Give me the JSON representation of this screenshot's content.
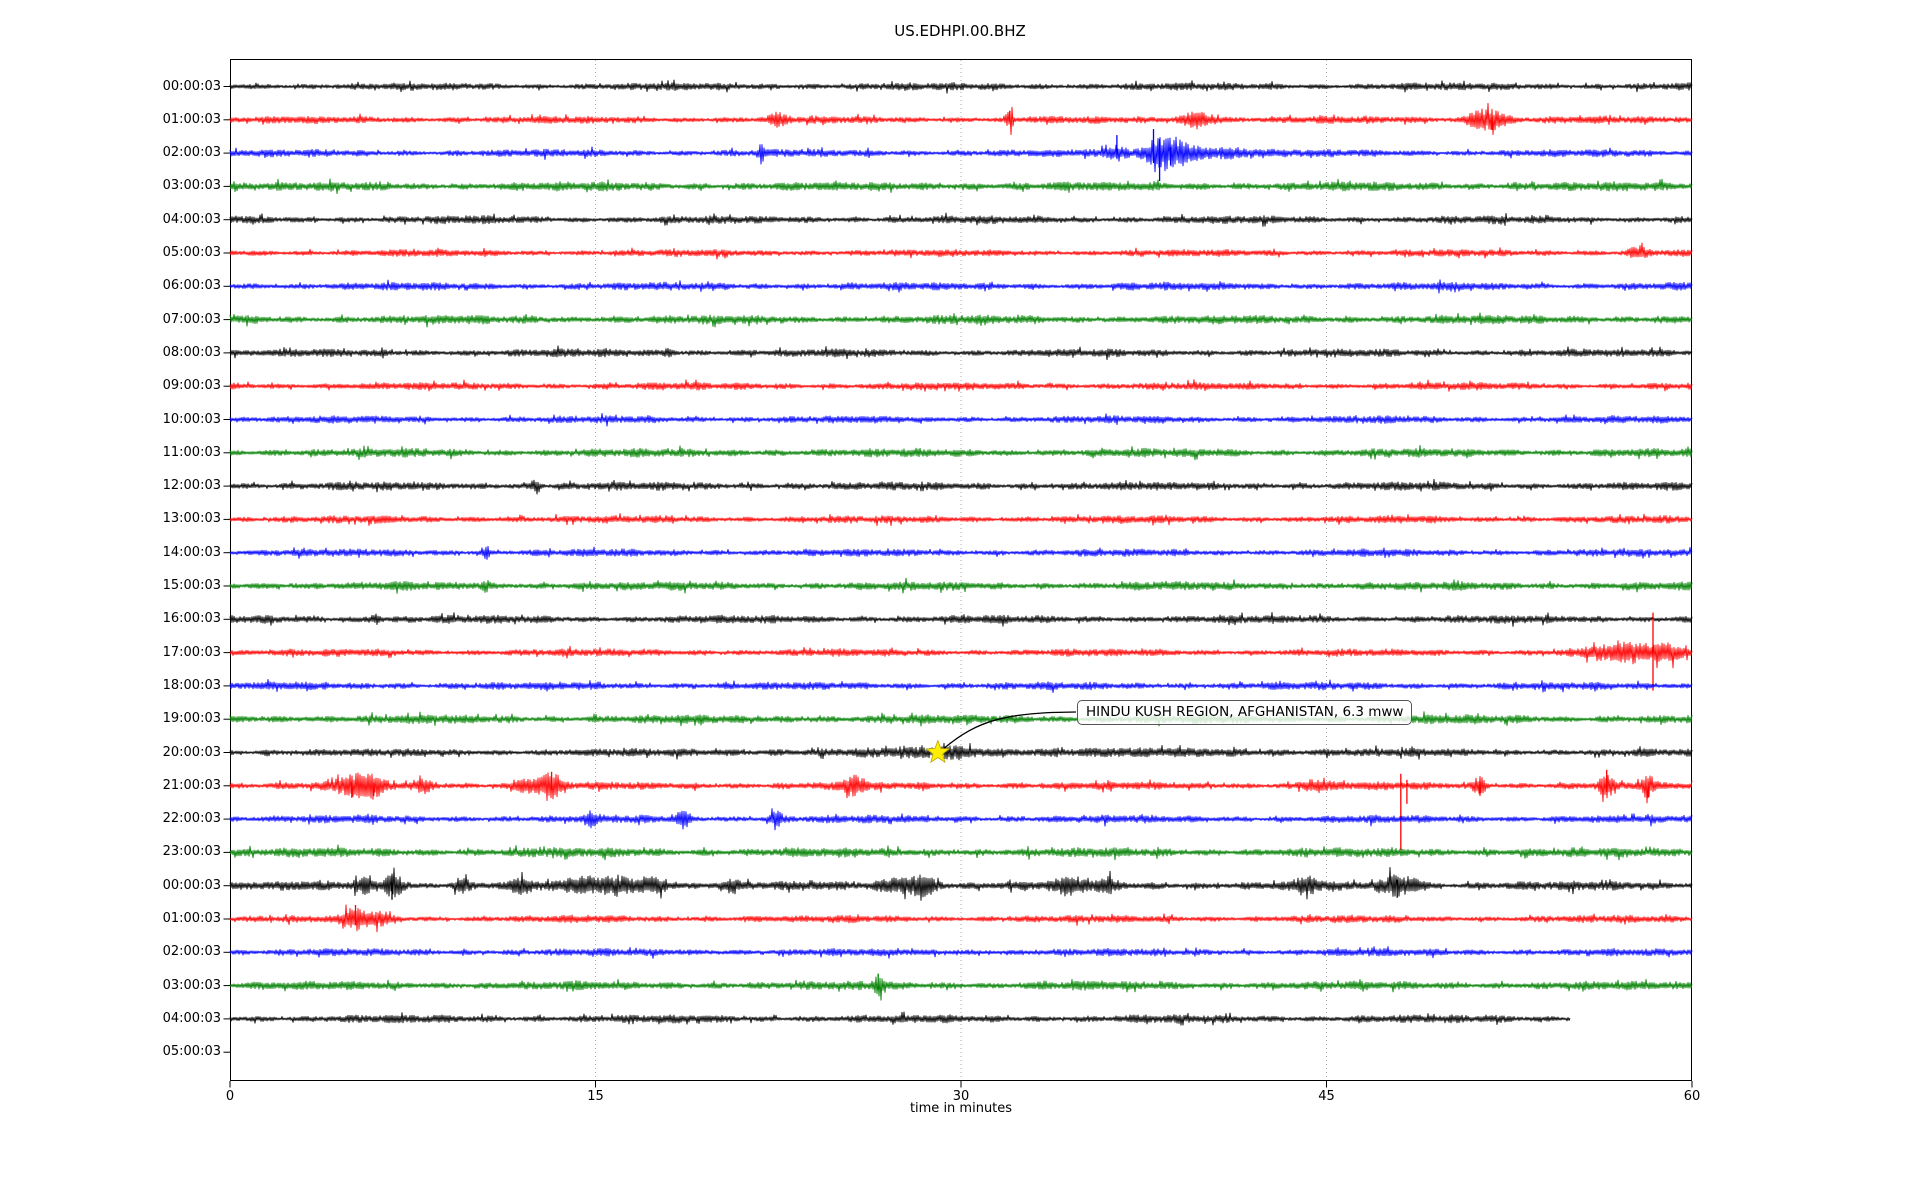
{
  "title": "US.EDHPI.00.BHZ",
  "axis": {
    "xlabel": "time in minutes",
    "x_tick_labels": [
      "0",
      "15",
      "30",
      "45",
      "60"
    ],
    "x_tick_minutes": [
      0,
      15,
      30,
      45,
      60
    ],
    "x_grid_minutes": [
      15,
      30,
      45
    ],
    "x_range": [
      0,
      60
    ]
  },
  "colors": {
    "black": "#000000",
    "red": "#ff0000",
    "blue": "#0000ff",
    "green": "#008000",
    "grid": "#aaaaaa",
    "frame": "#000000",
    "star_fill": "#ffee00",
    "star_edge": "#b8a800",
    "annotation_border": "#555555"
  },
  "annotation": {
    "text": "HINDU KUSH REGION, AFGHANISTAN, 6.3 mww",
    "star_row_index": 20,
    "star_minute": 29.05
  },
  "chart_data": {
    "type": "line",
    "subtype": "seismogram-helicorder",
    "station": "US.EDHPI.00.BHZ",
    "minutes_per_row": 60,
    "color_cycle": [
      "black",
      "red",
      "blue",
      "green"
    ],
    "event_annotation": {
      "label": "HINDU KUSH REGION, AFGHANISTAN, 6.3 mww",
      "row_label": "20:00:03",
      "minute": 29.05
    },
    "rows": [
      {
        "label": "00:00:03",
        "color": "black",
        "end": 60,
        "amp": 3.8,
        "events": [],
        "spikes": []
      },
      {
        "label": "01:00:03",
        "color": "red",
        "end": 60,
        "amp": 3.8,
        "events": [
          [
            22.5,
            0.25,
            5
          ],
          [
            32,
            0.12,
            7
          ],
          [
            39.8,
            0.5,
            7
          ],
          [
            51.3,
            0.4,
            7
          ],
          [
            51.9,
            0.4,
            6
          ]
        ],
        "spikes": [
          [
            32,
            9,
            2
          ],
          [
            51.8,
            3,
            10
          ]
        ]
      },
      {
        "label": "02:00:03",
        "color": "blue",
        "end": 60,
        "amp": 3.8,
        "events": [
          [
            21.8,
            0.12,
            7
          ],
          [
            36.4,
            0.3,
            6
          ],
          [
            38.1,
            0.4,
            12
          ],
          [
            38.9,
            0.5,
            8
          ],
          [
            40.3,
            1.4,
            4
          ]
        ],
        "spikes": [
          [
            36.4,
            18,
            5
          ],
          [
            37.9,
            24,
            10
          ],
          [
            38.15,
            14,
            28
          ],
          [
            38.6,
            6,
            12
          ]
        ]
      },
      {
        "label": "03:00:03",
        "color": "green",
        "end": 60,
        "amp": 4.6,
        "events": [],
        "spikes": []
      },
      {
        "label": "04:00:03",
        "color": "black",
        "end": 60,
        "amp": 4.0,
        "events": [],
        "spikes": []
      },
      {
        "label": "05:00:03",
        "color": "red",
        "end": 60,
        "amp": 3.6,
        "events": [
          [
            57.8,
            0.3,
            5
          ]
        ],
        "spikes": []
      },
      {
        "label": "06:00:03",
        "color": "blue",
        "end": 60,
        "amp": 4.0,
        "events": [],
        "spikes": []
      },
      {
        "label": "07:00:03",
        "color": "green",
        "end": 60,
        "amp": 4.6,
        "events": [],
        "spikes": []
      },
      {
        "label": "08:00:03",
        "color": "black",
        "end": 60,
        "amp": 4.0,
        "events": [
          [
            18,
            0.15,
            4
          ]
        ],
        "spikes": []
      },
      {
        "label": "09:00:03",
        "color": "red",
        "end": 60,
        "amp": 3.8,
        "events": [],
        "spikes": []
      },
      {
        "label": "10:00:03",
        "color": "blue",
        "end": 60,
        "amp": 3.8,
        "events": [],
        "spikes": []
      },
      {
        "label": "11:00:03",
        "color": "green",
        "end": 60,
        "amp": 4.4,
        "events": [],
        "spikes": []
      },
      {
        "label": "12:00:03",
        "color": "black",
        "end": 60,
        "amp": 4.2,
        "events": [
          [
            12.5,
            0.15,
            4
          ]
        ],
        "spikes": []
      },
      {
        "label": "13:00:03",
        "color": "red",
        "end": 60,
        "amp": 3.8,
        "events": [],
        "spikes": []
      },
      {
        "label": "14:00:03",
        "color": "blue",
        "end": 60,
        "amp": 3.8,
        "events": [
          [
            10.5,
            0.1,
            5
          ]
        ],
        "spikes": []
      },
      {
        "label": "15:00:03",
        "color": "green",
        "end": 60,
        "amp": 4.4,
        "events": [
          [
            10.5,
            0.1,
            4
          ]
        ],
        "spikes": []
      },
      {
        "label": "16:00:03",
        "color": "black",
        "end": 60,
        "amp": 4.2,
        "events": [
          [
            6,
            0.15,
            4
          ]
        ],
        "spikes": []
      },
      {
        "label": "17:00:03",
        "color": "red",
        "end": 60,
        "amp": 3.8,
        "events": [
          [
            56.1,
            0.4,
            5
          ],
          [
            57.6,
            0.6,
            8
          ],
          [
            59.1,
            0.5,
            6
          ]
        ],
        "spikes": [
          [
            58.4,
            40,
            38
          ]
        ]
      },
      {
        "label": "18:00:03",
        "color": "blue",
        "end": 60,
        "amp": 4.0,
        "events": [],
        "spikes": []
      },
      {
        "label": "19:00:03",
        "color": "green",
        "end": 60,
        "amp": 4.6,
        "events": [],
        "spikes": []
      },
      {
        "label": "20:00:03",
        "color": "black",
        "end": 60,
        "amp": 3.8,
        "events": [
          [
            29.6,
            0.8,
            3
          ],
          [
            33,
            9,
            1.4
          ]
        ],
        "spikes": []
      },
      {
        "label": "21:00:03",
        "color": "red",
        "end": 60,
        "amp": 4.0,
        "events": [
          [
            5,
            0.5,
            8
          ],
          [
            5.8,
            0.4,
            9
          ],
          [
            8,
            0.3,
            5
          ],
          [
            12.3,
            0.4,
            7
          ],
          [
            13.2,
            0.3,
            10
          ],
          [
            25.6,
            0.3,
            9
          ],
          [
            44.5,
            0.4,
            5
          ],
          [
            51.3,
            0.2,
            7
          ],
          [
            56.5,
            0.2,
            10
          ],
          [
            58.2,
            0.2,
            7
          ]
        ],
        "spikes": [
          [
            5.0,
            4,
            12
          ],
          [
            5.9,
            3,
            10
          ],
          [
            13.2,
            14,
            4
          ],
          [
            48.05,
            12,
            64
          ],
          [
            48.3,
            6,
            18
          ],
          [
            51.3,
            4,
            10
          ],
          [
            56.5,
            16,
            6
          ],
          [
            58.2,
            4,
            12
          ]
        ]
      },
      {
        "label": "22:00:03",
        "color": "blue",
        "end": 60,
        "amp": 4.0,
        "events": [
          [
            14.8,
            0.2,
            5
          ],
          [
            18.6,
            0.2,
            7
          ],
          [
            22.4,
            0.2,
            6
          ]
        ],
        "spikes": []
      },
      {
        "label": "23:00:03",
        "color": "green",
        "end": 60,
        "amp": 4.8,
        "events": [],
        "spikes": []
      },
      {
        "label": "00:00:03",
        "color": "black",
        "end": 60,
        "amp": 4.6,
        "events": [
          [
            5.5,
            0.3,
            7
          ],
          [
            6.7,
            0.3,
            11
          ],
          [
            9.5,
            0.2,
            6
          ],
          [
            12,
            0.3,
            5
          ],
          [
            14.5,
            0.5,
            7
          ],
          [
            16,
            0.5,
            8
          ],
          [
            17.5,
            0.4,
            7
          ],
          [
            20.5,
            0.3,
            5
          ],
          [
            27.5,
            0.6,
            6
          ],
          [
            28.5,
            0.4,
            7
          ],
          [
            34.5,
            0.5,
            6
          ],
          [
            36,
            0.3,
            5
          ],
          [
            44.2,
            0.3,
            7
          ],
          [
            47.8,
            0.4,
            8
          ],
          [
            48.6,
            0.3,
            6
          ]
        ],
        "spikes": [
          [
            6.65,
            10,
            14
          ],
          [
            47.9,
            6,
            12
          ]
        ]
      },
      {
        "label": "01:00:03",
        "color": "red",
        "end": 60,
        "amp": 3.8,
        "events": [
          [
            5.2,
            0.35,
            10
          ],
          [
            6.1,
            0.3,
            5
          ]
        ],
        "spikes": [
          [
            5.15,
            14,
            6
          ]
        ]
      },
      {
        "label": "02:00:03",
        "color": "blue",
        "end": 60,
        "amp": 3.8,
        "events": [],
        "spikes": []
      },
      {
        "label": "03:00:03",
        "color": "green",
        "end": 60,
        "amp": 4.4,
        "events": [
          [
            26.6,
            0.15,
            8
          ]
        ],
        "spikes": [
          [
            26.6,
            12,
            4
          ]
        ]
      },
      {
        "label": "04:00:03",
        "color": "black",
        "end": 55,
        "amp": 4.2,
        "events": [],
        "spikes": []
      },
      {
        "label": "05:00:03",
        "color": "black",
        "end": 0,
        "amp": 0,
        "events": [],
        "spikes": []
      }
    ]
  }
}
